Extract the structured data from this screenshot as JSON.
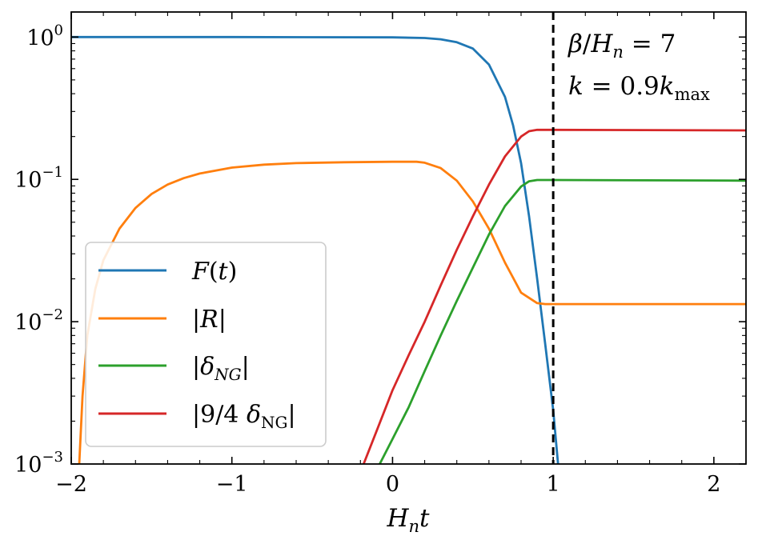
{
  "chart_data": {
    "type": "line",
    "title": "",
    "xlabel": "H_n t",
    "ylabel": "",
    "xlim": [
      -2,
      2.2
    ],
    "ylim": [
      0.001,
      1.5
    ],
    "yscale": "log",
    "grid": false,
    "legend_position": "lower-left",
    "x_ticks": [
      {
        "value": -2,
        "label": "−2"
      },
      {
        "value": -1,
        "label": "−1"
      },
      {
        "value": 0,
        "label": "0"
      },
      {
        "value": 1,
        "label": "1"
      },
      {
        "value": 2,
        "label": "2"
      }
    ],
    "y_ticks": [
      {
        "value": 1,
        "base": "10",
        "exp": "0"
      },
      {
        "value": 0.1,
        "base": "10",
        "exp": "−1"
      },
      {
        "value": 0.01,
        "base": "10",
        "exp": "−2"
      },
      {
        "value": 0.001,
        "base": "10",
        "exp": "−3"
      }
    ],
    "vline": {
      "x": 1,
      "style": "dashed",
      "color": "#000000"
    },
    "annotations": [
      {
        "text": "β/H_n = 7"
      },
      {
        "text": "k = 0.9k_max"
      }
    ],
    "series": [
      {
        "name": "F(t)",
        "color": "#1f77b4",
        "points": [
          [
            -2,
            1.0
          ],
          [
            -1,
            1.0
          ],
          [
            0,
            0.995
          ],
          [
            0.2,
            0.985
          ],
          [
            0.3,
            0.965
          ],
          [
            0.4,
            0.92
          ],
          [
            0.5,
            0.83
          ],
          [
            0.6,
            0.64
          ],
          [
            0.7,
            0.38
          ],
          [
            0.75,
            0.24
          ],
          [
            0.8,
            0.13
          ],
          [
            0.85,
            0.055
          ],
          [
            0.9,
            0.02
          ],
          [
            0.95,
            0.007
          ],
          [
            1.0,
            0.0024
          ],
          [
            1.03,
            0.001
          ]
        ]
      },
      {
        "name": "|R|",
        "color": "#ff7f0e",
        "points": [
          [
            -1.95,
            0.001
          ],
          [
            -1.93,
            0.003
          ],
          [
            -1.9,
            0.008
          ],
          [
            -1.85,
            0.017
          ],
          [
            -1.8,
            0.027
          ],
          [
            -1.7,
            0.045
          ],
          [
            -1.6,
            0.063
          ],
          [
            -1.5,
            0.079
          ],
          [
            -1.4,
            0.092
          ],
          [
            -1.3,
            0.102
          ],
          [
            -1.2,
            0.11
          ],
          [
            -1.0,
            0.121
          ],
          [
            -0.8,
            0.127
          ],
          [
            -0.6,
            0.13
          ],
          [
            -0.3,
            0.132
          ],
          [
            0.0,
            0.133
          ],
          [
            0.15,
            0.133
          ],
          [
            0.2,
            0.131
          ],
          [
            0.3,
            0.12
          ],
          [
            0.4,
            0.098
          ],
          [
            0.5,
            0.07
          ],
          [
            0.6,
            0.045
          ],
          [
            0.7,
            0.026
          ],
          [
            0.8,
            0.016
          ],
          [
            0.9,
            0.0135
          ],
          [
            0.95,
            0.0133
          ],
          [
            1.2,
            0.0133
          ],
          [
            2.2,
            0.0133
          ]
        ]
      },
      {
        "name": "|δ_NG|",
        "color": "#2ca02c",
        "points": [
          [
            -0.08,
            0.001
          ],
          [
            0.0,
            0.0015
          ],
          [
            0.1,
            0.0025
          ],
          [
            0.2,
            0.0045
          ],
          [
            0.3,
            0.008
          ],
          [
            0.4,
            0.014
          ],
          [
            0.5,
            0.024
          ],
          [
            0.6,
            0.041
          ],
          [
            0.7,
            0.065
          ],
          [
            0.8,
            0.089
          ],
          [
            0.85,
            0.097
          ],
          [
            0.9,
            0.099
          ],
          [
            1.0,
            0.099
          ],
          [
            2.2,
            0.098
          ]
        ]
      },
      {
        "name": "|9/4 δ_NG|",
        "color": "#d62728",
        "points": [
          [
            -0.18,
            0.001
          ],
          [
            -0.1,
            0.0017
          ],
          [
            0.0,
            0.0033
          ],
          [
            0.1,
            0.0058
          ],
          [
            0.2,
            0.01
          ],
          [
            0.3,
            0.018
          ],
          [
            0.4,
            0.032
          ],
          [
            0.5,
            0.055
          ],
          [
            0.6,
            0.092
          ],
          [
            0.7,
            0.145
          ],
          [
            0.8,
            0.2
          ],
          [
            0.85,
            0.218
          ],
          [
            0.9,
            0.223
          ],
          [
            1.0,
            0.223
          ],
          [
            2.2,
            0.221
          ]
        ]
      }
    ]
  }
}
